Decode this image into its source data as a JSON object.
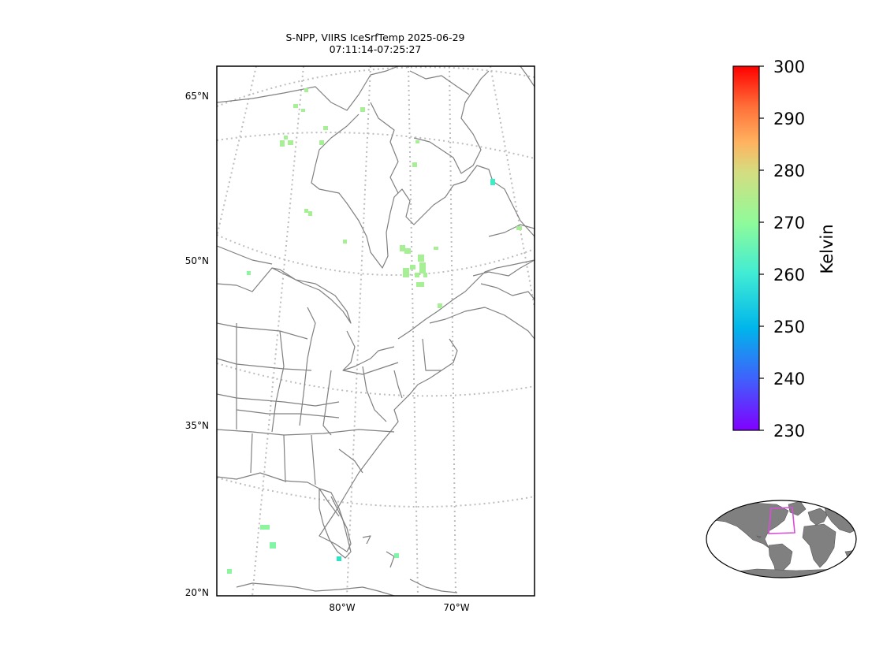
{
  "title": {
    "line1": "S-NPP, VIIRS IceSrfTemp 2025-06-29",
    "line2": "07:11:14-07:25:27"
  },
  "map": {
    "lat_labels": [
      "65°N",
      "50°N",
      "35°N",
      "20°N"
    ],
    "lon_labels": [
      "80°W",
      "70°W"
    ],
    "colors": {
      "coastline": "#808080",
      "gridline": "#bdbdbd",
      "frame": "#000000",
      "data_light_green": "#a6ef94",
      "data_green": "#8ef59f",
      "data_cyan": "#2be5c6"
    }
  },
  "colorbar": {
    "label": "Kelvin",
    "ticks": [
      "300",
      "290",
      "280",
      "270",
      "260",
      "250",
      "240",
      "230"
    ],
    "vmin": 230,
    "vmax": 300,
    "colormap": "rainbow"
  },
  "inset": {
    "description_icon": "world-globe-icon",
    "highlight_color": "#d84fd8",
    "land_color": "#808080"
  }
}
